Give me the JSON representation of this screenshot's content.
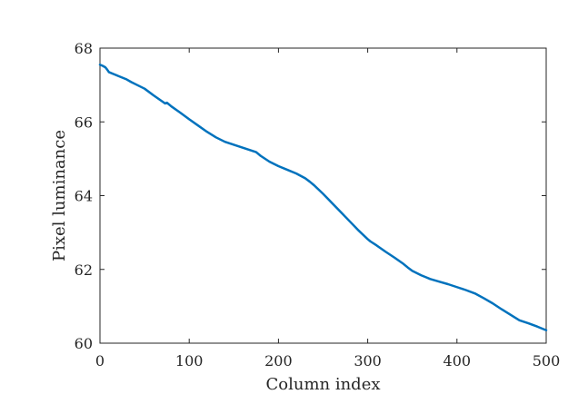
{
  "chart_data": {
    "type": "line",
    "title": "",
    "xlabel": "Column index",
    "ylabel": "Pixel luminance",
    "xlim": [
      0,
      500
    ],
    "ylim": [
      60,
      68
    ],
    "xticks": [
      0,
      100,
      200,
      300,
      400,
      500
    ],
    "xtick_labels": [
      "0",
      "100",
      "200",
      "300",
      "400",
      "500"
    ],
    "yticks": [
      60,
      62,
      64,
      66,
      68
    ],
    "ytick_labels": [
      "60",
      "62",
      "64",
      "66",
      "68"
    ],
    "grid": false,
    "legend": "none",
    "series": [
      {
        "color": "#0072BD",
        "x": [
          0,
          3,
          6,
          8,
          10,
          20,
          30,
          35,
          40,
          50,
          60,
          70,
          73,
          75,
          77,
          80,
          90,
          100,
          110,
          120,
          130,
          140,
          145,
          150,
          160,
          170,
          175,
          180,
          190,
          200,
          210,
          220,
          230,
          235,
          240,
          250,
          260,
          270,
          280,
          290,
          300,
          303,
          310,
          320,
          330,
          340,
          345,
          350,
          360,
          365,
          370,
          380,
          390,
          400,
          410,
          420,
          430,
          440,
          450,
          460,
          470,
          480,
          490,
          500
        ],
        "y": [
          67.55,
          67.52,
          67.48,
          67.42,
          67.35,
          67.25,
          67.15,
          67.08,
          67.02,
          66.9,
          66.72,
          66.55,
          66.5,
          66.52,
          66.48,
          66.42,
          66.25,
          66.07,
          65.9,
          65.73,
          65.58,
          65.46,
          65.42,
          65.38,
          65.3,
          65.22,
          65.18,
          65.08,
          64.92,
          64.8,
          64.7,
          64.6,
          64.47,
          64.38,
          64.28,
          64.05,
          63.8,
          63.55,
          63.3,
          63.05,
          62.82,
          62.76,
          62.65,
          62.48,
          62.32,
          62.15,
          62.05,
          61.96,
          61.84,
          61.79,
          61.74,
          61.67,
          61.6,
          61.52,
          61.44,
          61.35,
          61.22,
          61.08,
          60.92,
          60.77,
          60.62,
          60.54,
          60.45,
          60.35
        ]
      }
    ]
  }
}
